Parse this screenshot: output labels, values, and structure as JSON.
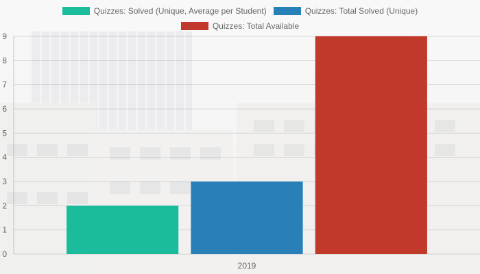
{
  "chart_data": {
    "type": "bar",
    "categories": [
      "2019"
    ],
    "series": [
      {
        "name": "Quizzes: Solved (Unique, Average per Student)",
        "values": [
          2
        ],
        "color": "#1abc9c"
      },
      {
        "name": "Quizzes: Total Solved (Unique)",
        "values": [
          3
        ],
        "color": "#2980b9"
      },
      {
        "name": "Quizzes: Total Available",
        "values": [
          9
        ],
        "color": "#c0392b"
      }
    ],
    "ylim": [
      0,
      9
    ],
    "yticks": [
      "0",
      "1",
      "2",
      "3",
      "4",
      "5",
      "6",
      "7",
      "8",
      "9"
    ],
    "grid": true,
    "legend_position": "top",
    "xlabel": "",
    "ylabel": "",
    "title": ""
  }
}
